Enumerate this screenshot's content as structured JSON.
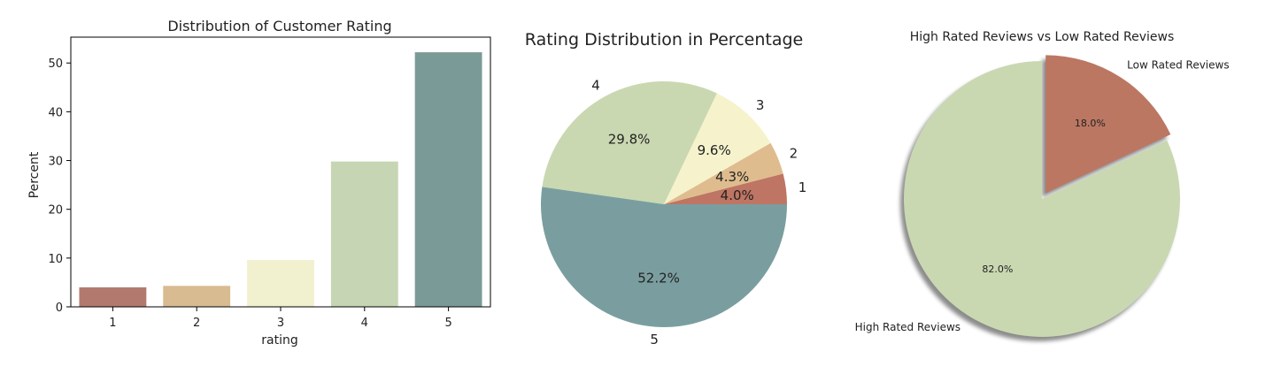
{
  "chart_data": [
    {
      "type": "bar",
      "title": "Distribution of Customer Rating",
      "xlabel": "rating",
      "ylabel": "Percent",
      "categories": [
        "1",
        "2",
        "3",
        "4",
        "5"
      ],
      "values": [
        4.0,
        4.3,
        9.6,
        29.8,
        52.2
      ],
      "colors": [
        "#b27a6e",
        "#d9bb92",
        "#f1f0cf",
        "#c6d5b3",
        "#7a9a98"
      ],
      "ylim": [
        0,
        55.3
      ],
      "yticks": [
        0,
        10,
        20,
        30,
        40,
        50
      ],
      "grid": false
    },
    {
      "type": "pie",
      "title": "Rating Distribution in Percentage",
      "slices": [
        {
          "label": "1",
          "pct_label": "4.0%",
          "value": 4.0,
          "color": "#bf7563"
        },
        {
          "label": "2",
          "pct_label": "4.3%",
          "value": 4.3,
          "color": "#dfbc8e"
        },
        {
          "label": "3",
          "pct_label": "9.6%",
          "value": 9.6,
          "color": "#f6f3cc"
        },
        {
          "label": "4",
          "pct_label": "29.8%",
          "value": 29.8,
          "color": "#c9d8b1"
        },
        {
          "label": "5",
          "pct_label": "52.2%",
          "value": 52.2,
          "color": "#7a9e9f"
        }
      ],
      "start_angle_deg": 0,
      "direction": "counterclockwise"
    },
    {
      "type": "pie",
      "title": "High Rated Reviews vs Low Rated Reviews",
      "slices": [
        {
          "label": "Low Rated Reviews",
          "pct_label": "18.0%",
          "value": 18.0,
          "color": "#bb7762"
        },
        {
          "label": "High Rated Reviews",
          "pct_label": "82.0%",
          "value": 82.0,
          "color": "#c9d8b1"
        }
      ],
      "start_angle_deg": 90,
      "direction": "clockwise",
      "shadow": true,
      "explode": [
        0.05,
        0
      ]
    }
  ]
}
